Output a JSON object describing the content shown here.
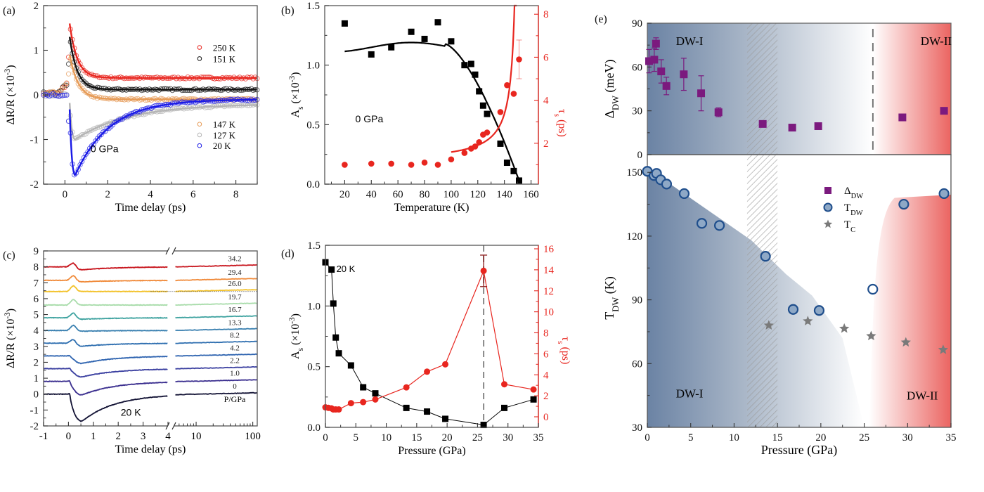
{
  "chart_data": [
    {
      "id": "a",
      "panel_label": "(a)",
      "type": "scatter",
      "xlabel": "Time delay (ps)",
      "ylabel": "ΔR/R (×10⁻³)",
      "xlim": [
        -1,
        9
      ],
      "ylim": [
        -2,
        2
      ],
      "xticks": [
        0,
        2,
        4,
        6,
        8
      ],
      "yticks": [
        -2,
        -1,
        0,
        1,
        2
      ],
      "annotation": "0 GPa",
      "series": [
        {
          "name": "250 K",
          "color": "#e8261f",
          "peak": 1.6,
          "tau": 0.35,
          "offset": 0.38,
          "kind": "pos"
        },
        {
          "name": "151 K",
          "color": "#111111",
          "peak": 1.3,
          "tau": 0.35,
          "offset": 0.12,
          "kind": "pos"
        },
        {
          "name": "147 K",
          "color": "#e69a55",
          "peak": 0.9,
          "tau": 0.4,
          "offset": -0.1,
          "kind": "pos"
        },
        {
          "name": "127 K",
          "color": "#b4b4b4",
          "peak": -1.0,
          "tau": 2.5,
          "offset": -0.2,
          "kind": "neg"
        },
        {
          "name": "20 K",
          "color": "#1a1ae6",
          "peak": -1.8,
          "tau": 1.6,
          "offset": -0.1,
          "kind": "neg"
        }
      ]
    },
    {
      "id": "b",
      "panel_label": "(b)",
      "type": "scatter",
      "xlabel": "Temperature  (K)",
      "ylabel": "A_s (×10⁻³)",
      "y2label": "τ_s (ps)",
      "xlim": [
        5,
        165
      ],
      "ylim": [
        0,
        1.5
      ],
      "y2lim": [
        0,
        8.4
      ],
      "xticks": [
        20,
        40,
        60,
        80,
        100,
        120,
        140,
        160
      ],
      "yticks": [
        0.0,
        0.5,
        1.0,
        1.5
      ],
      "y2ticks": [
        2,
        4,
        6,
        8
      ],
      "annotation": "0 GPa",
      "amplitude": {
        "T": [
          20,
          40,
          55,
          70,
          80,
          90,
          100,
          110,
          115,
          118,
          121,
          124,
          127,
          137,
          142,
          147,
          151
        ],
        "A": [
          1.35,
          1.09,
          1.15,
          1.28,
          1.22,
          1.36,
          1.2,
          1.0,
          1.01,
          0.92,
          0.78,
          0.66,
          0.59,
          0.34,
          0.18,
          0.11,
          0.03
        ],
        "fit_color": "#000000"
      },
      "tau": {
        "T": [
          20,
          40,
          55,
          70,
          80,
          90,
          100,
          110,
          115,
          118,
          121,
          124,
          127,
          137,
          142,
          147,
          151
        ],
        "tau": [
          1.0,
          1.05,
          1.05,
          1.0,
          1.1,
          1.0,
          1.25,
          1.55,
          1.75,
          1.85,
          2.05,
          2.4,
          2.5,
          3.45,
          4.7,
          4.3,
          5.9
        ],
        "color": "#e8261f"
      }
    },
    {
      "id": "c",
      "panel_label": "(c)",
      "type": "line",
      "xlabel": "Time delay (ps)",
      "ylabel": "ΔR/R   (×10⁻³)",
      "xlim_linear": [
        -1,
        4
      ],
      "xlim_log": [
        4,
        120
      ],
      "ylim": [
        -2,
        9
      ],
      "xticks": [
        "-1",
        "0",
        "1",
        "2",
        "3",
        "4",
        "10",
        "100"
      ],
      "yticks": [
        -2,
        -1,
        0,
        1,
        2,
        3,
        4,
        5,
        6,
        7,
        8,
        9
      ],
      "annotation": "20 K",
      "legend_title": "P/GPa",
      "series": [
        {
          "name": "0",
          "offset": 0,
          "amp": -1.8,
          "color": "#111133"
        },
        {
          "name": "1.0",
          "offset": 0.8,
          "amp": -0.9,
          "color": "#3b2f8f"
        },
        {
          "name": "2.2",
          "offset": 1.6,
          "amp": -0.55,
          "color": "#3a3fa0"
        },
        {
          "name": "4.2",
          "offset": 2.4,
          "amp": -0.5,
          "color": "#2f64b0"
        },
        {
          "name": "8.2",
          "offset": 3.2,
          "amp": -0.2,
          "color": "#2f6fb0"
        },
        {
          "name": "13.3",
          "offset": 4.0,
          "amp": -0.05,
          "color": "#3a80b0"
        },
        {
          "name": "16.7",
          "offset": 4.8,
          "amp": -0.1,
          "color": "#3fa3a0"
        },
        {
          "name": "19.7",
          "offset": 5.6,
          "amp": 0.0,
          "color": "#a8dcaa"
        },
        {
          "name": "26.0",
          "offset": 6.45,
          "amp": 0.0,
          "color": "#f3c22a"
        },
        {
          "name": "29.4",
          "offset": 7.15,
          "amp": -0.1,
          "color": "#f08a3a"
        },
        {
          "name": "34.2",
          "offset": 8.0,
          "amp": -0.2,
          "color": "#c8161e"
        }
      ]
    },
    {
      "id": "d",
      "panel_label": "(d)",
      "type": "line",
      "xlabel": "Pressure (GPa)",
      "ylabel": "A_s  (×10⁻³)",
      "y2label": "τ_s (ps)",
      "xlim": [
        0,
        35
      ],
      "ylim": [
        0,
        1.5
      ],
      "y2lim": [
        -1,
        17
      ],
      "xticks": [
        0,
        5,
        10,
        15,
        20,
        25,
        30,
        35
      ],
      "yticks": [
        0.0,
        0.5,
        1.0,
        1.5
      ],
      "y2ticks": [
        0,
        2,
        4,
        6,
        8,
        10,
        12,
        14,
        16
      ],
      "annotation": "20 K",
      "dashed_line_x": 26.0,
      "amplitude": {
        "P": [
          0,
          1.0,
          1.3,
          1.7,
          2.2,
          4.2,
          6.2,
          8.2,
          13.3,
          16.7,
          19.7,
          26.0,
          29.4,
          34.2
        ],
        "A": [
          1.36,
          1.3,
          1.02,
          0.74,
          0.61,
          0.51,
          0.33,
          0.28,
          0.16,
          0.13,
          0.07,
          0.02,
          0.16,
          0.23
        ]
      },
      "tau": {
        "P": [
          0,
          0.5,
          1.0,
          1.3,
          1.7,
          2.2,
          4.2,
          6.2,
          8.2,
          13.3,
          16.7,
          19.7,
          26.0,
          29.4,
          34.2
        ],
        "tau": [
          0.9,
          0.85,
          0.8,
          0.7,
          0.7,
          0.7,
          1.3,
          1.4,
          1.65,
          2.8,
          4.3,
          5.0,
          13.9,
          3.1,
          2.6
        ],
        "color": "#e8261f"
      }
    },
    {
      "id": "e",
      "panel_label": "(e)",
      "type": "scatter",
      "xlabel": "Pressure (GPa)",
      "ylabel_top": "Δ_DW (meV)",
      "ylabel_bottom": "T_DW  (K)",
      "xlim": [
        0,
        35
      ],
      "ylim_top": [
        0,
        90
      ],
      "ylim_bottom": [
        30,
        160
      ],
      "xticks": [
        0,
        5,
        10,
        15,
        20,
        25,
        30,
        35
      ],
      "yticks_top": [
        0,
        30,
        60,
        90
      ],
      "yticks_bottom": [
        30,
        60,
        90,
        120,
        150
      ],
      "region_labels": [
        "DW-I",
        "DW-II"
      ],
      "hatched_range": [
        11.5,
        15.0
      ],
      "dashed_line_x": 26.0,
      "legend": [
        "Δ_DW",
        "T_DW",
        "T_C"
      ],
      "gap": {
        "P": [
          0.2,
          0.8,
          1.0,
          1.6,
          2.2,
          4.2,
          6.2,
          8.2,
          13.3,
          16.7,
          19.7,
          29.4,
          34.2
        ],
        "value": [
          64,
          65,
          76,
          57,
          47,
          55,
          42,
          29,
          21,
          18.5,
          19.5,
          25.5,
          30
        ],
        "err": [
          8,
          8,
          4,
          8,
          6,
          11,
          12,
          3,
          2,
          2,
          2,
          1,
          1
        ],
        "color": "#7b1a7e"
      },
      "tdw": {
        "P": [
          0,
          0.8,
          1.1,
          1.6,
          2.3,
          4.4,
          6.5,
          8.6,
          14.1,
          17.4,
          20.5,
          26.9,
          30.6,
          35.4
        ],
        "value": [
          150.5,
          148.5,
          149.5,
          146.5,
          144.5,
          140,
          126,
          125,
          110.5,
          85.5,
          85,
          95,
          135,
          140
        ],
        "color": "#1f4e8c"
      },
      "tc": {
        "P": [
          14.0,
          18.5,
          22.7,
          25.8,
          29.8,
          34.1
        ],
        "value": [
          78,
          80,
          76.5,
          73,
          70,
          66.5
        ],
        "color": "#7a7a7a"
      }
    }
  ]
}
